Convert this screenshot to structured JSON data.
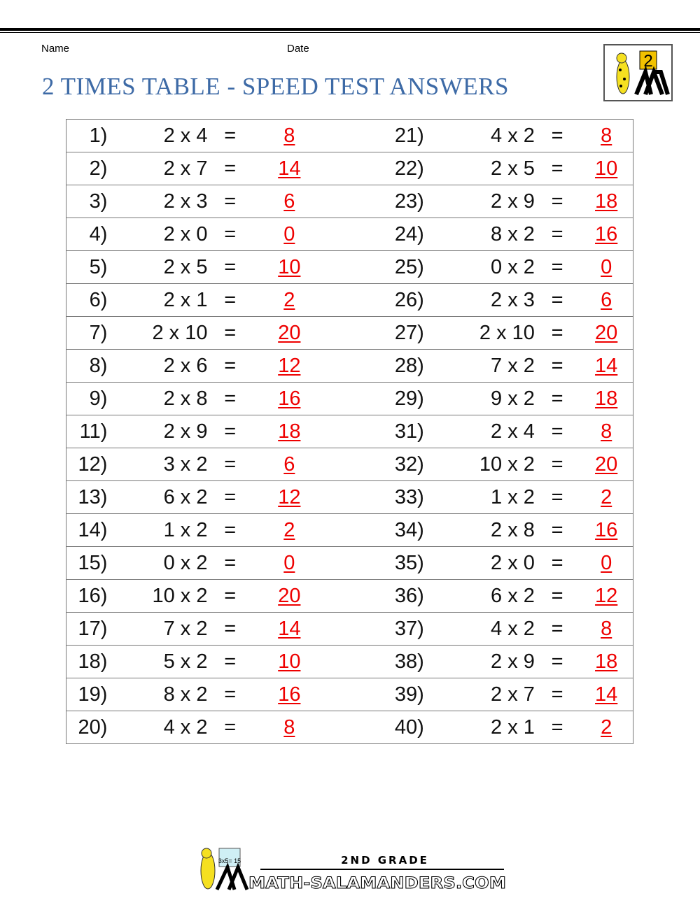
{
  "header": {
    "name_label": "Name",
    "date_label": "Date",
    "title": "2 TIMES TABLE - SPEED TEST ANSWERS"
  },
  "logo": {
    "text": "2"
  },
  "rows": [
    {
      "n1": "1)",
      "e1": "2 x 4",
      "a1": "8",
      "n2": "21)",
      "e2": "4 x 2",
      "a2": "8"
    },
    {
      "n1": "2)",
      "e1": "2 x 7",
      "a1": "14",
      "n2": "22)",
      "e2": "2 x 5",
      "a2": "10"
    },
    {
      "n1": "3)",
      "e1": "2 x 3",
      "a1": "6",
      "n2": "23)",
      "e2": "2 x 9",
      "a2": "18"
    },
    {
      "n1": "4)",
      "e1": "2 x 0",
      "a1": "0",
      "n2": "24)",
      "e2": "8 x 2",
      "a2": "16"
    },
    {
      "n1": "5)",
      "e1": "2 x 5",
      "a1": "10",
      "n2": "25)",
      "e2": "0 x 2",
      "a2": "0"
    },
    {
      "n1": "6)",
      "e1": "2 x 1",
      "a1": "2",
      "n2": "26)",
      "e2": "2 x 3",
      "a2": "6"
    },
    {
      "n1": "7)",
      "e1": "2 x 10",
      "a1": "20",
      "n2": "27)",
      "e2": "2 x 10",
      "a2": "20"
    },
    {
      "n1": "8)",
      "e1": "2 x 6",
      "a1": "12",
      "n2": "28)",
      "e2": "7 x 2",
      "a2": "14"
    },
    {
      "n1": "9)",
      "e1": "2 x 8",
      "a1": "16",
      "n2": "29)",
      "e2": "9 x 2",
      "a2": "18"
    },
    {
      "n1": "11)",
      "e1": "2 x 9",
      "a1": "18",
      "n2": "31)",
      "e2": "2 x 4",
      "a2": "8"
    },
    {
      "n1": "12)",
      "e1": "3 x 2",
      "a1": "6",
      "n2": "32)",
      "e2": "10 x 2",
      "a2": "20"
    },
    {
      "n1": "13)",
      "e1": "6 x 2",
      "a1": "12",
      "n2": "33)",
      "e2": "1 x 2",
      "a2": "2"
    },
    {
      "n1": "14)",
      "e1": "1 x 2",
      "a1": "2",
      "n2": "34)",
      "e2": "2 x 8",
      "a2": "16"
    },
    {
      "n1": "15)",
      "e1": "0 x 2",
      "a1": "0",
      "n2": "35)",
      "e2": "2 x 0",
      "a2": "0"
    },
    {
      "n1": "16)",
      "e1": "10 x 2",
      "a1": "20",
      "n2": "36)",
      "e2": "6 x 2",
      "a2": "12"
    },
    {
      "n1": "17)",
      "e1": "7 x 2",
      "a1": "14",
      "n2": "37)",
      "e2": "4 x 2",
      "a2": "8"
    },
    {
      "n1": "18)",
      "e1": "5 x 2",
      "a1": "10",
      "n2": "38)",
      "e2": "2 x 9",
      "a2": "18"
    },
    {
      "n1": "19)",
      "e1": "8 x 2",
      "a1": "16",
      "n2": "39)",
      "e2": "2 x 7",
      "a2": "14"
    },
    {
      "n1": "20)",
      "e1": "4 x 2",
      "a1": "8",
      "n2": "40)",
      "e2": "2 x 1",
      "a2": "2"
    }
  ],
  "equals": "=",
  "footer": {
    "grade": "2ND GRADE",
    "site": "MATH-SALAMANDERS.COM",
    "board_text": "3x5= 15"
  },
  "colors": {
    "title": "#3d6aa6",
    "answer": "#e00000"
  }
}
